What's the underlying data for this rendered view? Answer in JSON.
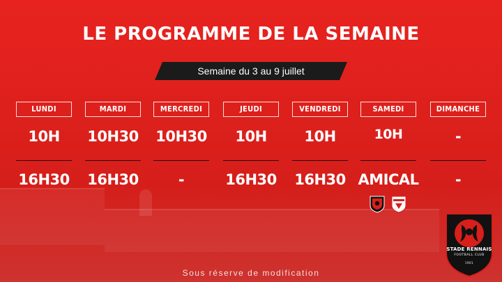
{
  "title": "LE PROGRAMME DE LA SEMAINE",
  "week_label": "Semaine du 3 au 9 juillet",
  "days": [
    {
      "name": "LUNDI",
      "morning": "10H",
      "afternoon": "16H30"
    },
    {
      "name": "MARDI",
      "morning": "10H30",
      "afternoon": "16H30"
    },
    {
      "name": "MERCREDI",
      "morning": "10H30",
      "afternoon": "-"
    },
    {
      "name": "JEUDI",
      "morning": "10H",
      "afternoon": "16H30"
    },
    {
      "name": "VENDREDI",
      "morning": "10H",
      "afternoon": "16H30"
    },
    {
      "name": "SAMEDI",
      "morning": "10H",
      "afternoon": "AMICAL"
    },
    {
      "name": "DIMANCHE",
      "morning": "-",
      "afternoon": "-"
    }
  ],
  "footnote": "Sous réserve de modification",
  "club": {
    "name": "STADE RENNAIS",
    "subtitle": "FOOTBALL CLUB",
    "year": "1901"
  },
  "colors": {
    "background": "#e8231f",
    "banner": "#1b1b1b",
    "text": "#ffffff"
  },
  "icons": [
    "stade-rennais-crest-icon",
    "fc-sion-crest-icon",
    "stade-rennais-badge-icon"
  ]
}
